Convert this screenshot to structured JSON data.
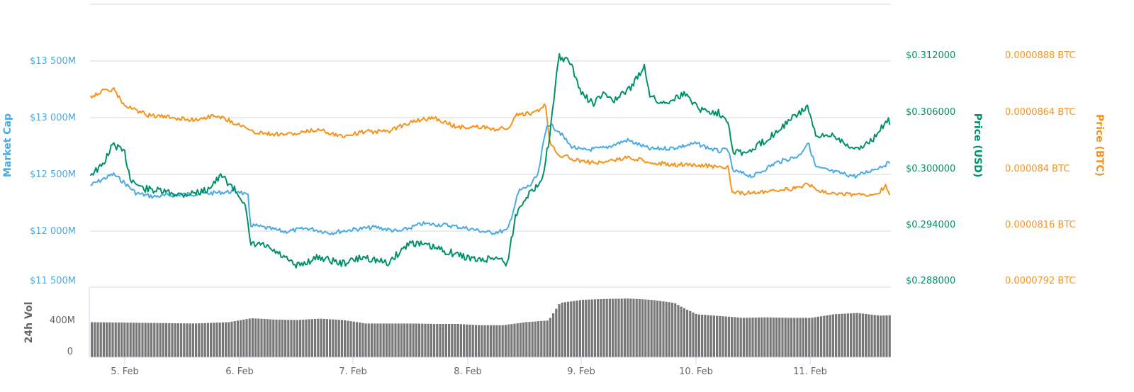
{
  "colors": {
    "market_cap": "#4aabe4",
    "price_usd": "#00916a",
    "price_btc": "#f7931a",
    "volume": "#777777",
    "gridline": "#e6e6e6",
    "x_axis_tick": "#ccd6eb",
    "vol_title": "#666666"
  },
  "axes": {
    "market_cap": {
      "title": "Market Cap",
      "ticks": [
        "$13 500M",
        "$13 000M",
        "$12 500M",
        "$12 000M",
        "$11 500M"
      ]
    },
    "price_usd": {
      "title": "Price (USD)",
      "ticks": [
        "$0.312000",
        "$0.306000",
        "$0.300000",
        "$0.294000",
        "$0.288000"
      ]
    },
    "price_btc": {
      "title": "Price (BTC)",
      "ticks": [
        "0.0000888 BTC",
        "0.0000864 BTC",
        "0.000084 BTC",
        "0.0000816 BTC",
        "0.0000792 BTC"
      ]
    },
    "volume": {
      "title": "24h Vol",
      "ticks": [
        "400M",
        "0"
      ]
    },
    "x": {
      "ticks": [
        "5. Feb",
        "6. Feb",
        "7. Feb",
        "8. Feb",
        "9. Feb",
        "10. Feb",
        "11. Feb"
      ]
    }
  },
  "chart_data": {
    "type": "line",
    "title": "",
    "xlabel": "",
    "x_categories": [
      "5. Feb",
      "6. Feb",
      "7. Feb",
      "8. Feb",
      "9. Feb",
      "10. Feb",
      "11. Feb"
    ],
    "x_range": [
      "4. Feb ~18:00",
      "11. Feb ~16:00"
    ],
    "legend": "none",
    "grid": true,
    "series": [
      {
        "name": "Market Cap",
        "axis": "left",
        "unit": "USD millions",
        "ylim": [
          11500,
          13500
        ],
        "x_day": [
          4.7,
          4.8,
          4.9,
          5.0,
          5.1,
          5.25,
          5.5,
          5.75,
          6.0,
          6.08,
          6.1,
          6.2,
          6.4,
          6.6,
          6.8,
          7.0,
          7.2,
          7.4,
          7.6,
          7.8,
          8.0,
          8.2,
          8.35,
          8.45,
          8.55,
          8.62,
          8.66,
          8.7,
          8.8,
          8.9,
          9.0,
          9.2,
          9.4,
          9.6,
          9.8,
          10.0,
          10.2,
          10.28,
          10.32,
          10.5,
          10.7,
          10.9,
          10.98,
          11.05,
          11.2,
          11.4,
          11.6,
          11.7
        ],
        "values": [
          12400,
          12450,
          12500,
          12420,
          12330,
          12300,
          12320,
          12330,
          12350,
          12300,
          12050,
          12030,
          11990,
          12020,
          11980,
          12010,
          12030,
          11990,
          12060,
          12050,
          12020,
          11980,
          12000,
          12350,
          12400,
          12500,
          12750,
          12950,
          12880,
          12750,
          12710,
          12730,
          12800,
          12720,
          12730,
          12770,
          12700,
          12720,
          12530,
          12480,
          12600,
          12660,
          12780,
          12560,
          12520,
          12480,
          12560,
          12600
        ]
      },
      {
        "name": "Price (USD)",
        "axis": "right-1",
        "unit": "USD",
        "ylim": [
          0.288,
          0.312
        ],
        "x_day": [
          4.7,
          4.8,
          4.9,
          5.0,
          5.05,
          5.15,
          5.3,
          5.5,
          5.7,
          5.85,
          5.95,
          6.05,
          6.1,
          6.2,
          6.35,
          6.5,
          6.7,
          6.9,
          7.1,
          7.3,
          7.5,
          7.7,
          7.9,
          8.1,
          8.25,
          8.35,
          8.42,
          8.5,
          8.6,
          8.66,
          8.72,
          8.8,
          8.9,
          9.0,
          9.1,
          9.2,
          9.3,
          9.45,
          9.55,
          9.6,
          9.7,
          9.9,
          10.05,
          10.2,
          10.28,
          10.32,
          10.45,
          10.6,
          10.8,
          10.98,
          11.05,
          11.2,
          11.4,
          11.6,
          11.66,
          11.7
        ],
        "values": [
          0.3,
          0.3008,
          0.3032,
          0.3022,
          0.2995,
          0.2985,
          0.2982,
          0.2978,
          0.2982,
          0.2998,
          0.2985,
          0.297,
          0.2925,
          0.2925,
          0.2915,
          0.2902,
          0.2912,
          0.2905,
          0.2912,
          0.2905,
          0.2928,
          0.2922,
          0.2915,
          0.2908,
          0.2912,
          0.2905,
          0.2955,
          0.2975,
          0.2985,
          0.3,
          0.304,
          0.3125,
          0.3118,
          0.3085,
          0.3075,
          0.3085,
          0.3078,
          0.3095,
          0.3115,
          0.3082,
          0.3075,
          0.3085,
          0.3068,
          0.3065,
          0.3058,
          0.3025,
          0.3022,
          0.3035,
          0.3055,
          0.3072,
          0.3038,
          0.3042,
          0.3025,
          0.3042,
          0.3058,
          0.3055
        ]
      },
      {
        "name": "Price (BTC)",
        "axis": "right-2",
        "unit": "BTC",
        "ylim": [
          7.92e-05,
          8.88e-05
        ],
        "x_day": [
          4.7,
          4.8,
          4.9,
          5.0,
          5.2,
          5.4,
          5.6,
          5.8,
          5.95,
          6.05,
          6.1,
          6.3,
          6.5,
          6.7,
          6.9,
          7.1,
          7.3,
          7.5,
          7.7,
          7.9,
          8.1,
          8.25,
          8.38,
          8.42,
          8.6,
          8.68,
          8.72,
          8.8,
          8.9,
          9.0,
          9.2,
          9.4,
          9.6,
          9.8,
          10.0,
          10.2,
          10.28,
          10.32,
          10.5,
          10.7,
          10.9,
          10.98,
          11.05,
          11.2,
          11.4,
          11.6,
          11.66,
          11.7
        ],
        "values": [
          8.73e-05,
          8.75e-05,
          8.76e-05,
          8.69e-05,
          8.65e-05,
          8.64e-05,
          8.63e-05,
          8.65e-05,
          8.62e-05,
          8.6e-05,
          8.58e-05,
          8.57e-05,
          8.57e-05,
          8.59e-05,
          8.56e-05,
          8.58e-05,
          8.58e-05,
          8.62e-05,
          8.64e-05,
          8.6e-05,
          8.6e-05,
          8.59e-05,
          8.6e-05,
          8.65e-05,
          8.66e-05,
          8.7e-05,
          8.54e-05,
          8.48e-05,
          8.47e-05,
          8.45e-05,
          8.45e-05,
          8.47e-05,
          8.45e-05,
          8.44e-05,
          8.44e-05,
          8.43e-05,
          8.43e-05,
          8.32e-05,
          8.32e-05,
          8.33e-05,
          8.34e-05,
          8.36e-05,
          8.33e-05,
          8.32e-05,
          8.31e-05,
          8.32e-05,
          8.35e-05,
          8.31e-05
        ]
      },
      {
        "name": "24h Vol",
        "type": "column",
        "axis": "volume",
        "unit": "USD millions",
        "ylim": [
          0,
          800
        ],
        "x_day": [
          4.7,
          5.0,
          5.3,
          5.6,
          5.9,
          6.1,
          6.3,
          6.5,
          6.7,
          6.9,
          7.1,
          7.3,
          7.5,
          7.7,
          7.9,
          8.1,
          8.3,
          8.5,
          8.6,
          8.7,
          8.8,
          9.0,
          9.2,
          9.4,
          9.6,
          9.8,
          9.9,
          10.0,
          10.2,
          10.4,
          10.6,
          10.8,
          11.0,
          11.2,
          11.4,
          11.6,
          11.7
        ],
        "values": [
          400,
          395,
          390,
          385,
          400,
          445,
          430,
          425,
          440,
          425,
          385,
          385,
          385,
          380,
          380,
          365,
          365,
          400,
          410,
          420,
          620,
          655,
          665,
          670,
          655,
          620,
          550,
          490,
          470,
          450,
          455,
          450,
          450,
          490,
          505,
          475,
          480
        ]
      }
    ]
  }
}
